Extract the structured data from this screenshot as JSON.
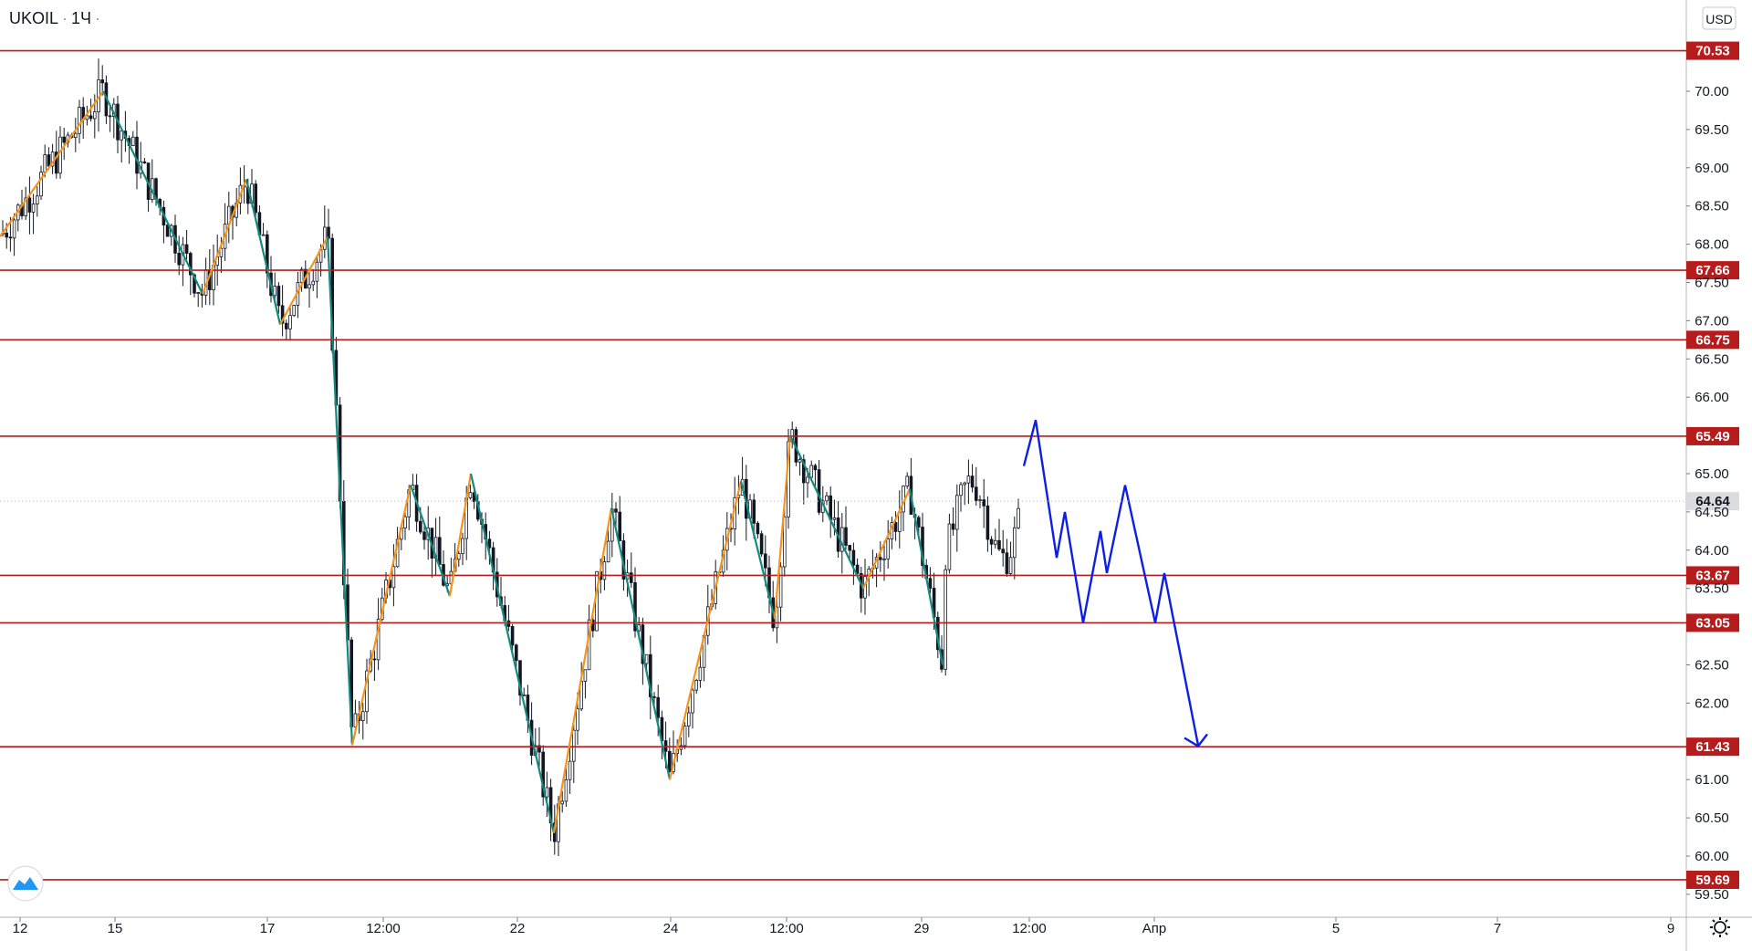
{
  "header": {
    "symbol": "UKOIL",
    "interval": "1Ч"
  },
  "currency": "USD",
  "icons": {
    "logo": "tradingview-cloud-icon",
    "settings": "gear-icon"
  },
  "colors": {
    "level": "#b71c1c",
    "zigzag_up": "#f7931a",
    "zigzag_down": "#14897e",
    "forecast": "#0d1ee6",
    "candle": "#131722",
    "current_badge": "#dcdce0"
  },
  "chart_data": {
    "type": "candlestick",
    "symbol": "UKOIL",
    "interval": "1Ч",
    "ylim": [
      59.4,
      71.1
    ],
    "y_ticks": [
      "70.00",
      "69.50",
      "69.00",
      "68.50",
      "68.00",
      "67.50",
      "67.00",
      "66.50",
      "66.00",
      "65.00",
      "64.50",
      "64.00",
      "63.50",
      "62.50",
      "62.00",
      "61.00",
      "60.50",
      "60.00",
      "59.50"
    ],
    "x_ticks": [
      "12",
      "15",
      "17",
      "12:00",
      "22",
      "24",
      "12:00",
      "29",
      "12:00",
      "Апр",
      "5",
      "7",
      "9"
    ],
    "levels": [
      "70.53",
      "67.66",
      "66.75",
      "65.49",
      "63.67",
      "63.05",
      "61.43",
      "59.69"
    ],
    "current_price": "64.64",
    "zigzag": [
      [
        0,
        68.1
      ],
      [
        113,
        70.0
      ],
      [
        222,
        67.35
      ],
      [
        270,
        68.85
      ],
      [
        307,
        66.95
      ],
      [
        359,
        68.1
      ],
      [
        386,
        61.45
      ],
      [
        450,
        64.85
      ],
      [
        493,
        63.4
      ],
      [
        516,
        65.0
      ],
      [
        607,
        60.3
      ],
      [
        670,
        64.55
      ],
      [
        734,
        61.0
      ],
      [
        812,
        64.9
      ],
      [
        849,
        63.1
      ],
      [
        866,
        65.5
      ],
      [
        946,
        63.5
      ],
      [
        997,
        64.8
      ],
      [
        1033,
        62.5
      ]
    ],
    "forecast_path": [
      [
        1122,
        65.1
      ],
      [
        1135,
        65.7
      ],
      [
        1158,
        63.9
      ],
      [
        1167,
        64.5
      ],
      [
        1187,
        63.05
      ],
      [
        1206,
        64.25
      ],
      [
        1213,
        63.7
      ],
      [
        1233,
        64.85
      ],
      [
        1266,
        63.05
      ],
      [
        1276,
        63.7
      ],
      [
        1313,
        61.45
      ]
    ]
  }
}
